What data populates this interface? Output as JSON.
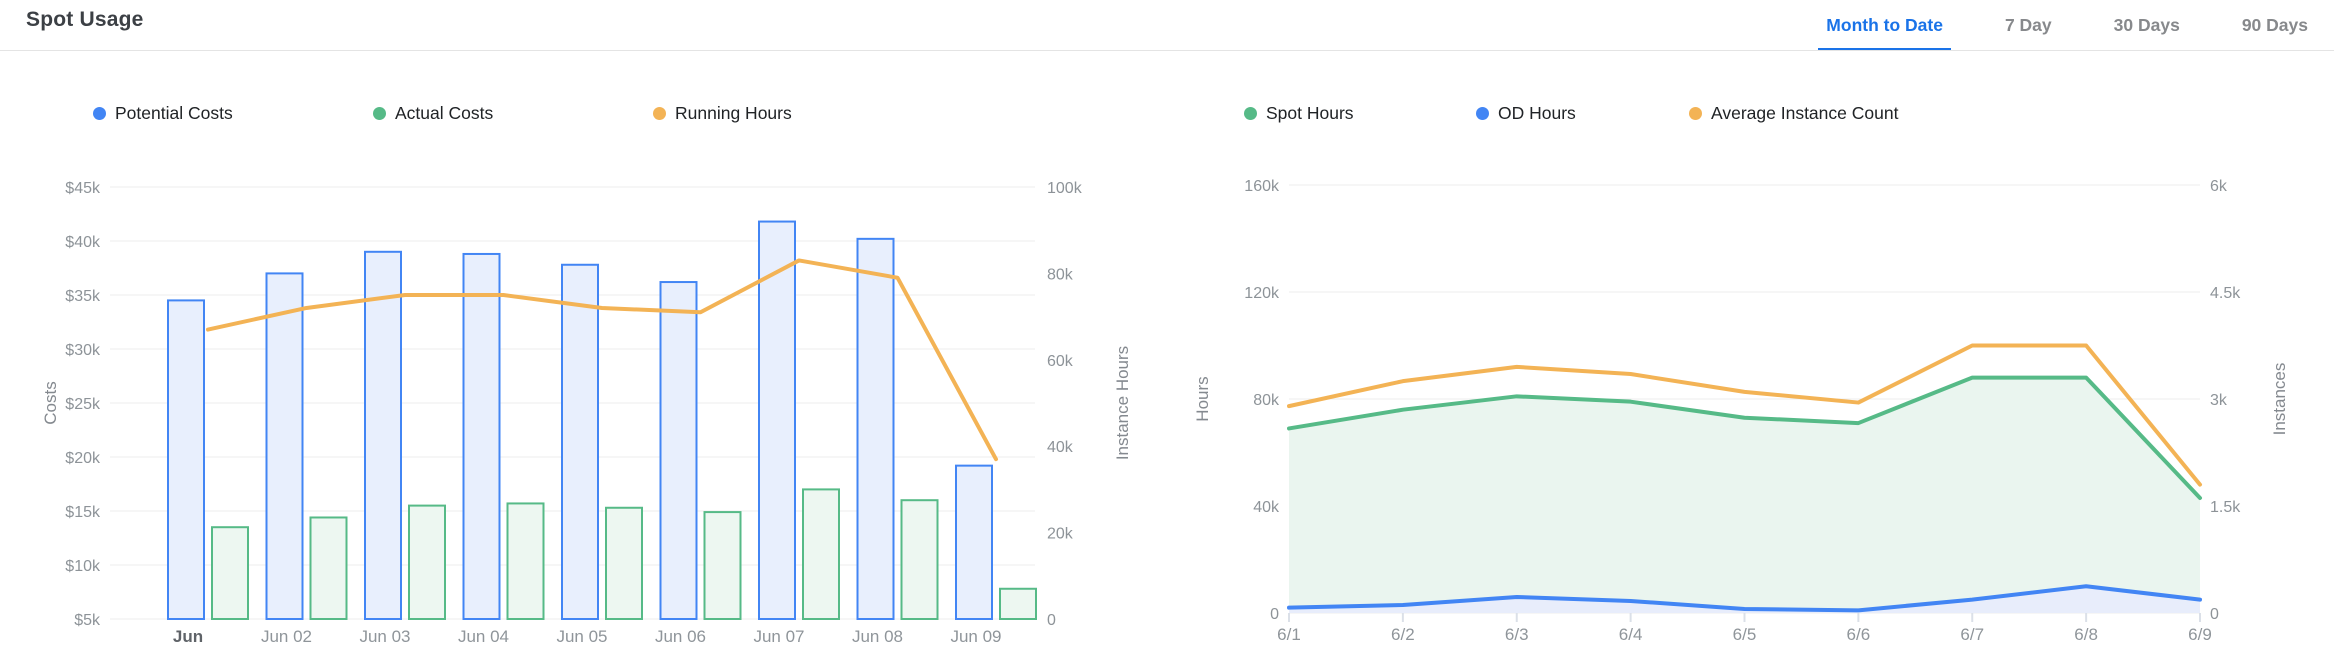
{
  "header": {
    "title": "Spot Usage",
    "tabs": [
      {
        "label": "Month to Date",
        "active": true
      },
      {
        "label": "7 Day",
        "active": false
      },
      {
        "label": "30 Days",
        "active": false
      },
      {
        "label": "90 Days",
        "active": false
      }
    ]
  },
  "colors": {
    "blue": "#4285f4",
    "green": "#56ba87",
    "orange": "#f3b355",
    "blue_fill": "#e8effd",
    "green_fill": "#edf7f1",
    "area_green": "#eaf5ef",
    "area_blue": "#e8edfb",
    "active_tab": "#1a73e8",
    "grid": "#ededed"
  },
  "chart_data": [
    {
      "id": "costs",
      "type": "bar",
      "title": "",
      "categories": [
        "Jun",
        "Jun 02",
        "Jun 03",
        "Jun 04",
        "Jun 05",
        "Jun 06",
        "Jun 07",
        "Jun 08",
        "Jun 09"
      ],
      "series": [
        {
          "name": "Potential Costs",
          "type": "bar",
          "axis": "left",
          "color_key": "blue",
          "units": "USD (thousands)",
          "values": [
            34.5,
            37,
            39,
            38.8,
            37.8,
            36.2,
            41.8,
            40.2,
            19.2
          ]
        },
        {
          "name": "Actual Costs",
          "type": "bar",
          "axis": "left",
          "color_key": "green",
          "units": "USD (thousands)",
          "values": [
            13.5,
            14.4,
            15.5,
            15.7,
            15.3,
            14.9,
            17,
            16,
            7.8
          ]
        },
        {
          "name": "Running Hours",
          "type": "line",
          "axis": "right",
          "color_key": "orange",
          "units": "hours (thousands)",
          "values": [
            67,
            72,
            75,
            75,
            72,
            71,
            83,
            79,
            37
          ]
        }
      ],
      "left_axis": {
        "title": "Costs",
        "min": 5,
        "max": 45,
        "ticks": [
          {
            "label": "$5k",
            "value": 5
          },
          {
            "label": "$10k",
            "value": 10
          },
          {
            "label": "$15k",
            "value": 15
          },
          {
            "label": "$20k",
            "value": 20
          },
          {
            "label": "$25k",
            "value": 25
          },
          {
            "label": "$30k",
            "value": 30
          },
          {
            "label": "$35k",
            "value": 35
          },
          {
            "label": "$40k",
            "value": 40
          },
          {
            "label": "$45k",
            "value": 45
          }
        ]
      },
      "right_axis": {
        "title": "Instance Hours",
        "min": 0,
        "max": 100,
        "ticks": [
          {
            "label": "0",
            "value": 0
          },
          {
            "label": "20k",
            "value": 20
          },
          {
            "label": "40k",
            "value": 40
          },
          {
            "label": "60k",
            "value": 60
          },
          {
            "label": "80k",
            "value": 80
          },
          {
            "label": "100k",
            "value": 100
          }
        ]
      },
      "legend_position": "top"
    },
    {
      "id": "usage",
      "type": "area",
      "title": "",
      "categories": [
        "6/1",
        "6/2",
        "6/3",
        "6/4",
        "6/5",
        "6/6",
        "6/7",
        "6/8",
        "6/9"
      ],
      "series": [
        {
          "name": "Spot Hours",
          "type": "area",
          "axis": "left",
          "color_key": "green",
          "units": "hours (thousands)",
          "values": [
            69,
            76,
            81,
            79,
            73,
            71,
            88,
            88,
            43
          ]
        },
        {
          "name": "OD Hours",
          "type": "area",
          "axis": "left",
          "color_key": "blue",
          "units": "hours (thousands)",
          "values": [
            2,
            3,
            6,
            4.5,
            1.5,
            1,
            5,
            10,
            5
          ]
        },
        {
          "name": "Average Instance Count",
          "type": "line",
          "axis": "right",
          "color_key": "orange",
          "units": "instances (thousands)",
          "values": [
            2.9,
            3.25,
            3.45,
            3.35,
            3.1,
            2.95,
            3.75,
            3.75,
            1.8
          ]
        }
      ],
      "left_axis": {
        "title": "Hours",
        "min": 0,
        "max": 160,
        "ticks": [
          {
            "label": "0",
            "value": 0
          },
          {
            "label": "40k",
            "value": 40
          },
          {
            "label": "80k",
            "value": 80
          },
          {
            "label": "120k",
            "value": 120
          },
          {
            "label": "160k",
            "value": 160
          }
        ]
      },
      "right_axis": {
        "title": "Instances",
        "min": 0,
        "max": 6,
        "ticks": [
          {
            "label": "0",
            "value": 0
          },
          {
            "label": "1.5k",
            "value": 1.5
          },
          {
            "label": "3k",
            "value": 3
          },
          {
            "label": "4.5k",
            "value": 4.5
          },
          {
            "label": "6k",
            "value": 6
          }
        ]
      },
      "legend_position": "top"
    }
  ]
}
